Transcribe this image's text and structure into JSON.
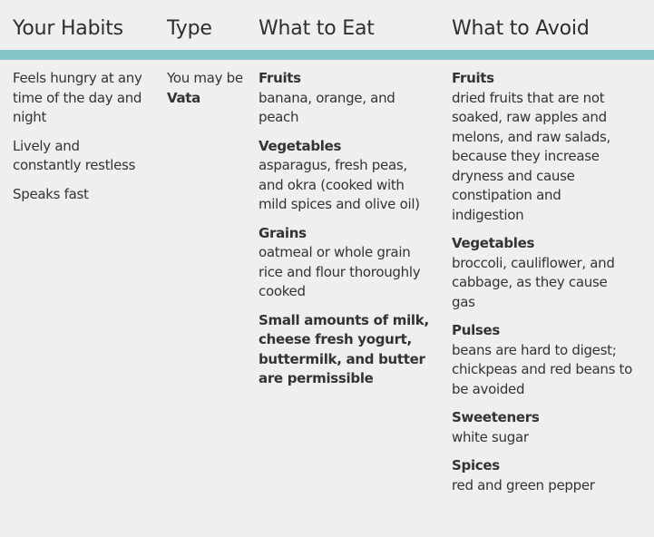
{
  "colors": {
    "background": "#efefef",
    "header_bar": "#84c6c8",
    "text": "#333333"
  },
  "headers": [
    "Your Habits",
    "Type",
    "What to Eat",
    "What to Avoid"
  ],
  "habits": [
    "Feels hungry at any time of the day and night",
    "Lively and constantly restless",
    "Speaks fast"
  ],
  "type": {
    "prefix": "You may be",
    "value": "Vata"
  },
  "eat": [
    {
      "title": "Fruits",
      "text": "banana, orange, and peach"
    },
    {
      "title": "Vegetables",
      "text": "asparagus, fresh peas, and okra (cooked with mild spices and olive oil)"
    },
    {
      "title": "Grains",
      "text": "oatmeal or whole grain rice and flour thoroughly cooked"
    },
    {
      "title": "Small amounts of milk, cheese fresh yogurt, buttermilk, and butter are permissible",
      "text": ""
    }
  ],
  "avoid": [
    {
      "title": "Fruits",
      "text": "dried fruits that are not soaked, raw apples and melons, and raw salads, because they increase dryness and cause constipation and indigestion"
    },
    {
      "title": "Vegetables",
      "text": "broccoli, cauliflower, and cabbage, as they cause gas"
    },
    {
      "title": "Pulses",
      "text": "beans are hard to digest; chickpeas and red beans to be avoided"
    },
    {
      "title": "Sweeteners",
      "text": "white sugar"
    },
    {
      "title": "Spices",
      "text": "red and green pepper"
    }
  ]
}
